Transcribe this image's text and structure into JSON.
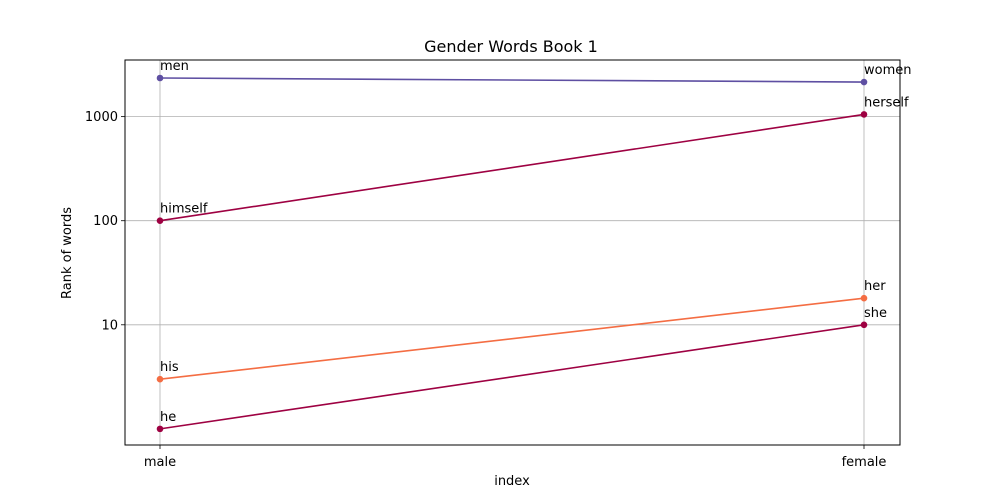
{
  "chart_data": {
    "type": "line",
    "title": "Gender Words Book 1",
    "xlabel": "index",
    "ylabel": "Rank of words",
    "categories": [
      "male",
      "female"
    ],
    "y_scale": "log",
    "ylim": [
      0.7,
      3500
    ],
    "yticks": [
      10,
      100,
      1000
    ],
    "ytick_labels": [
      "10",
      "100",
      "1000"
    ],
    "grid": true,
    "series": [
      {
        "labels": [
          "men",
          "women"
        ],
        "values": [
          2350,
          2150
        ],
        "color": "#5e4fa2"
      },
      {
        "labels": [
          "himself",
          "herself"
        ],
        "values": [
          100,
          1050
        ],
        "color": "#9e0142"
      },
      {
        "labels": [
          "his",
          "her"
        ],
        "values": [
          3,
          18
        ],
        "color": "#f46d43"
      },
      {
        "labels": [
          "he",
          "she"
        ],
        "values": [
          1,
          10
        ],
        "color": "#9e0142"
      }
    ]
  }
}
